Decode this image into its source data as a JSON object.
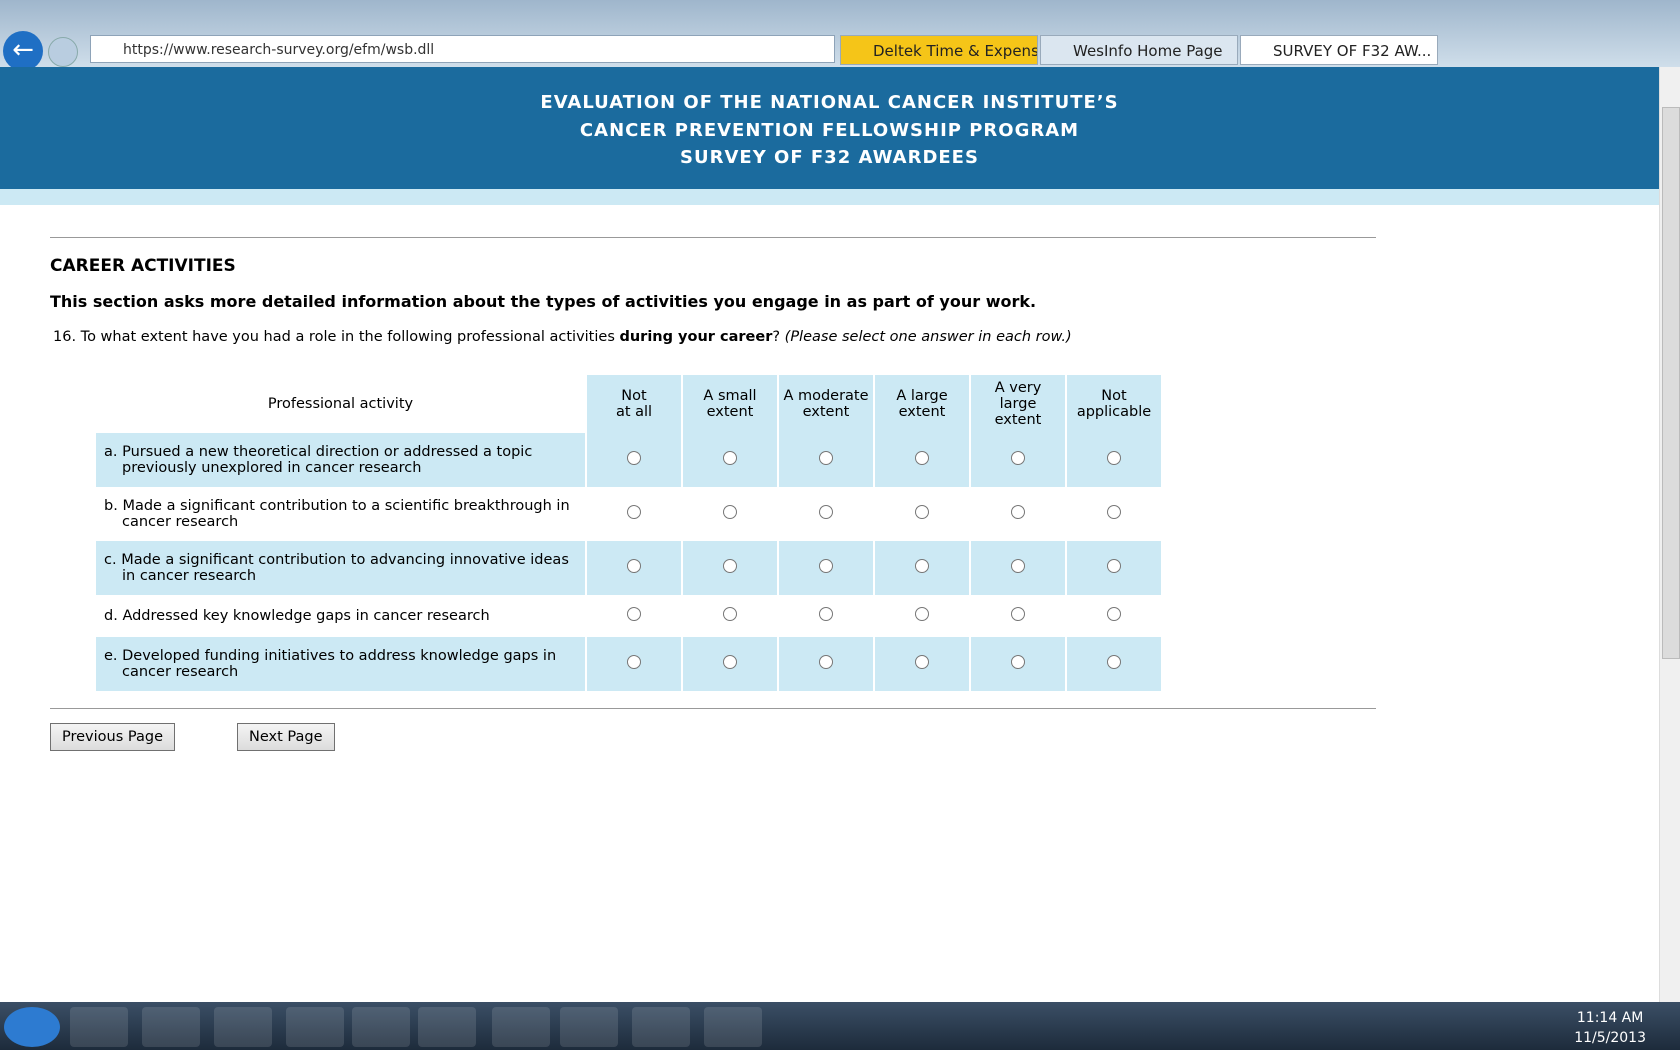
{
  "browser": {
    "url": "https://www.research-survey.org/efm/wsb.dll",
    "tabs": [
      "Deltek Time & Expense...",
      "WesInfo Home Page",
      "SURVEY OF F32 AW..."
    ]
  },
  "header": {
    "lines": [
      "EVALUATION OF THE NATIONAL CANCER INSTITUTE’S",
      "CANCER PREVENTION FELLOWSHIP PROGRAM",
      "SURVEY OF F32 AWARDEES"
    ]
  },
  "section": {
    "title": "CAREER ACTIVITIES",
    "intro": "This section asks more detailed information about the types of activities you engage in as part of your work."
  },
  "question": {
    "number": "16.",
    "text": "To what extent have you had a role in the following professional activities ",
    "emphasis": "during your career",
    "punct": "?",
    "instruction": "(Please select one answer in each row.)"
  },
  "table": {
    "header": "Professional activity",
    "columns": [
      "Not\nat all",
      "A small\nextent",
      "A moderate\nextent",
      "A large\nextent",
      "A very large\nextent",
      "Not\napplicable"
    ],
    "rows": [
      {
        "letter": "a.",
        "text": "Pursued a new theoretical direction or addressed a topic previously unexplored in cancer research"
      },
      {
        "letter": "b.",
        "text": "Made a significant contribution to a scientific breakthrough in cancer research"
      },
      {
        "letter": "c.",
        "text": "Made a significant contribution to advancing innovative ideas in cancer research"
      },
      {
        "letter": "d.",
        "text": "Addressed key knowledge gaps in cancer research"
      },
      {
        "letter": "e.",
        "text": "Developed funding initiatives to address knowledge gaps in cancer research"
      }
    ]
  },
  "buttons": {
    "previous": "Previous Page",
    "next": "Next Page"
  },
  "taskbar": {
    "time": "11:14 AM",
    "date": "11/5/2013"
  }
}
